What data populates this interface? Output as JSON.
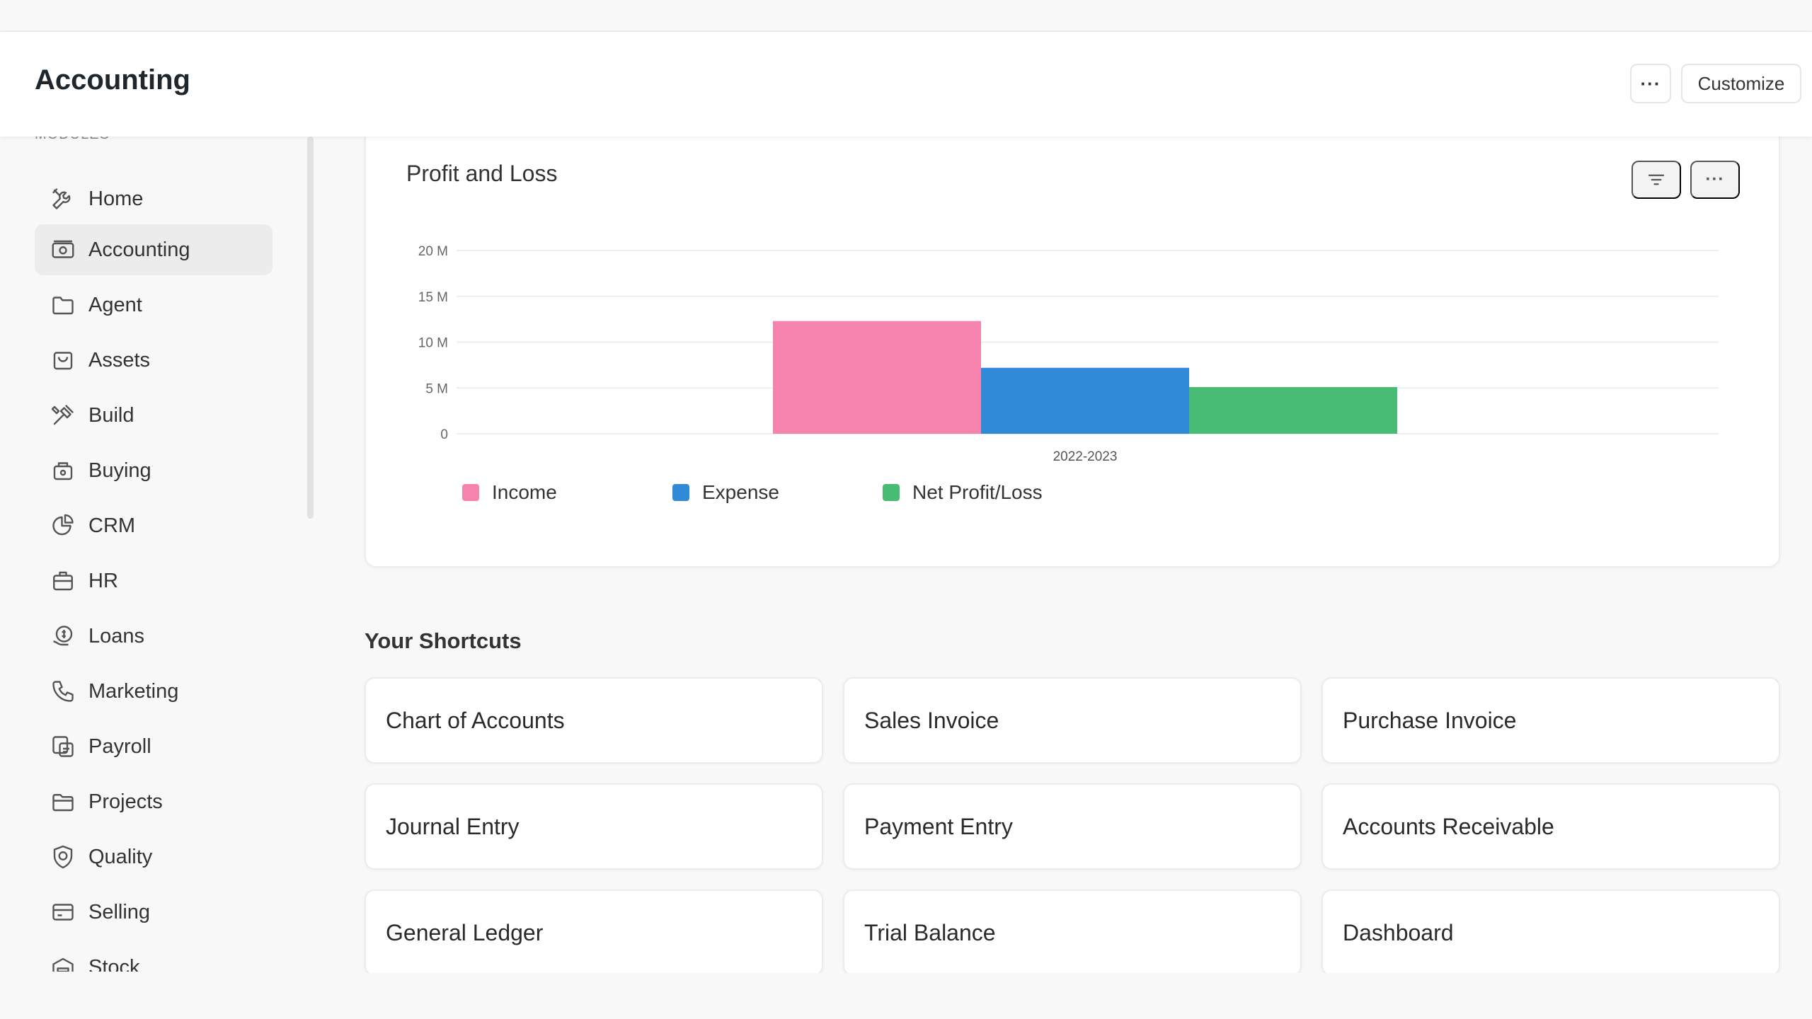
{
  "header": {
    "title": "Accounting",
    "more_label": "···",
    "customize_label": "Customize"
  },
  "sidebar": {
    "section_label": "MODULES",
    "active": "Accounting",
    "items": [
      {
        "label": "Home",
        "icon": "tools-icon"
      },
      {
        "label": "Accounting",
        "icon": "accounting-icon"
      },
      {
        "label": "Agent",
        "icon": "folder-icon"
      },
      {
        "label": "Assets",
        "icon": "assets-icon"
      },
      {
        "label": "Build",
        "icon": "build-icon"
      },
      {
        "label": "Buying",
        "icon": "buying-icon"
      },
      {
        "label": "CRM",
        "icon": "crm-icon"
      },
      {
        "label": "HR",
        "icon": "hr-icon"
      },
      {
        "label": "Loans",
        "icon": "loans-icon"
      },
      {
        "label": "Marketing",
        "icon": "phone-icon"
      },
      {
        "label": "Payroll",
        "icon": "payroll-icon"
      },
      {
        "label": "Projects",
        "icon": "projects-icon"
      },
      {
        "label": "Quality",
        "icon": "quality-icon"
      },
      {
        "label": "Selling",
        "icon": "selling-icon"
      },
      {
        "label": "Stock",
        "icon": "stock-icon"
      }
    ]
  },
  "card": {
    "title": "Profit and Loss",
    "more_label": "···"
  },
  "chart_data": {
    "type": "bar",
    "title": "Profit and Loss",
    "categories": [
      "2022-2023"
    ],
    "series": [
      {
        "name": "Income",
        "values": [
          12.3
        ],
        "color": "#f683ae"
      },
      {
        "name": "Expense",
        "values": [
          7.2
        ],
        "color": "#318ad8"
      },
      {
        "name": "Net Profit/Loss",
        "values": [
          5.1
        ],
        "color": "#48bb74"
      }
    ],
    "yticks": [
      "0",
      "5 M",
      "10 M",
      "15 M",
      "20 M"
    ],
    "ylim": [
      0,
      20
    ],
    "unit": "M",
    "grid": true,
    "legend_position": "bottom-left"
  },
  "shortcuts": {
    "title": "Your Shortcuts",
    "items": [
      "Chart of Accounts",
      "Sales Invoice",
      "Purchase Invoice",
      "Journal Entry",
      "Payment Entry",
      "Accounts Receivable",
      "General Ledger",
      "Trial Balance",
      "Dashboard"
    ]
  }
}
